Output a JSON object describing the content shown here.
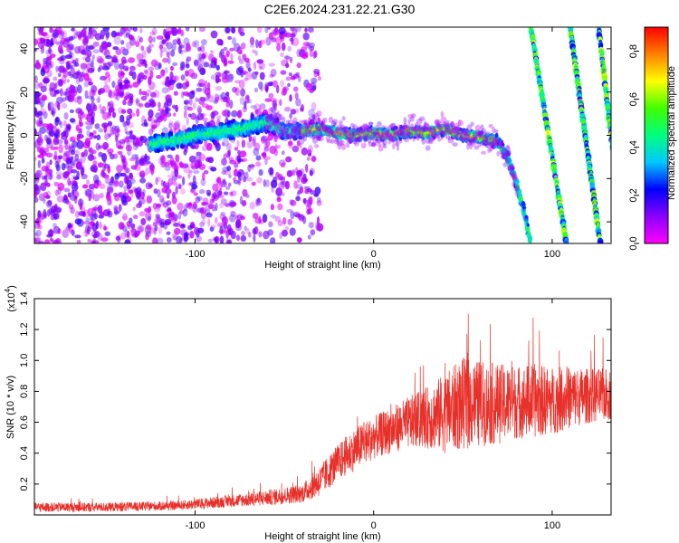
{
  "title": "C2E6.2024.231.22.21.G30",
  "chart_data": [
    {
      "type": "heatmap",
      "title": "C2E6.2024.231.22.21.G30",
      "xlabel": "Height of straight line (km)",
      "ylabel": "Frequency (Hz)",
      "xlim": [
        -190,
        133
      ],
      "ylim": [
        -50,
        50
      ],
      "x_ticks": [
        -100,
        0,
        100
      ],
      "y_ticks": [
        -40,
        -20,
        0,
        20,
        40
      ],
      "colorbar": {
        "label": "Normalized spectral amplitude",
        "range": [
          0.0,
          0.9
        ],
        "ticks": [
          0.0,
          0.2,
          0.4,
          0.6,
          0.8
        ],
        "colormap": [
          "#ff00ff",
          "#8a00ff",
          "#0000ff",
          "#00c8ff",
          "#00ff80",
          "#40ff00",
          "#ffff00",
          "#ff8000",
          "#ff0000"
        ]
      },
      "ridge": {
        "x": [
          -190,
          -160,
          -130,
          -110,
          -100,
          -90,
          -80,
          -70,
          -60,
          -50,
          -40,
          -30,
          -20,
          -10,
          0,
          10,
          20,
          30,
          40,
          50,
          60,
          70,
          75,
          80,
          85,
          88
        ],
        "y": [
          -8,
          -6,
          -5,
          -2,
          0,
          1,
          2,
          4,
          6,
          2,
          2,
          3,
          1,
          0,
          1,
          0,
          2,
          1,
          3,
          0,
          -1,
          -3,
          -10,
          -22,
          -38,
          -50
        ]
      },
      "diagonal_tracks": [
        {
          "x_top": 88,
          "x_bottom": 108,
          "y_top": 50,
          "y_bottom": -50
        },
        {
          "x_top": 110,
          "x_bottom": 127,
          "y_top": 50,
          "y_bottom": -50
        },
        {
          "x_top": 126,
          "x_bottom": 140,
          "y_top": 50,
          "y_bottom": -50
        }
      ],
      "noise_region": {
        "x_from": -190,
        "x_to": -40
      }
    },
    {
      "type": "line",
      "xlabel": "Height of straight line (km)",
      "ylabel": "SNR (10 * v/v)",
      "y_multiplier": "(x10",
      "y_multiplier_exp": "4",
      "y_multiplier_close": ")",
      "xlim": [
        -190,
        133
      ],
      "ylim": [
        0.0,
        1.4
      ],
      "x_ticks": [
        -100,
        0,
        100
      ],
      "y_ticks": [
        0.2,
        0.4,
        0.6,
        0.8,
        1.0,
        1.2,
        1.4
      ],
      "line_color": "#e8302a",
      "series": [
        {
          "x": [
            -190,
            -150,
            -110,
            -80,
            -60,
            -40,
            -30,
            -20,
            -10,
            0,
            10,
            20,
            30,
            40,
            50,
            60,
            70,
            80,
            90,
            100,
            110,
            120,
            133
          ],
          "mean": [
            0.05,
            0.05,
            0.06,
            0.09,
            0.11,
            0.14,
            0.22,
            0.34,
            0.43,
            0.5,
            0.55,
            0.6,
            0.63,
            0.66,
            0.72,
            0.72,
            0.72,
            0.73,
            0.74,
            0.74,
            0.76,
            0.77,
            0.78
          ],
          "amp": [
            0.03,
            0.03,
            0.03,
            0.04,
            0.05,
            0.06,
            0.1,
            0.12,
            0.14,
            0.14,
            0.15,
            0.17,
            0.2,
            0.26,
            0.3,
            0.28,
            0.26,
            0.24,
            0.24,
            0.22,
            0.2,
            0.18,
            0.17
          ]
        }
      ]
    }
  ]
}
